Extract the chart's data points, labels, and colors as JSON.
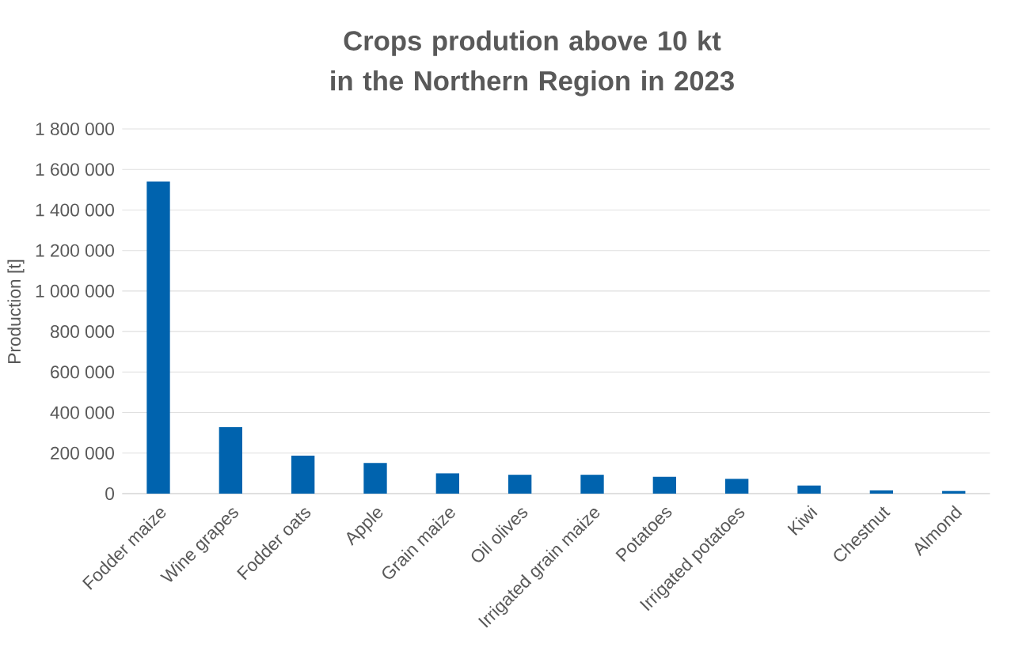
{
  "chart_data": {
    "type": "bar",
    "title": "Crops prodution above 10 kt in the Northern Region in 2023",
    "ylabel": "Production [t]",
    "categories": [
      "Fodder maize",
      "Wine grapes",
      "Fodder oats",
      "Apple",
      "Grain maize",
      "Oil olives",
      "Irrigated grain maize",
      "Potatoes",
      "Irrigated potatoes",
      "Kiwi",
      "Chestnut",
      "Almond"
    ],
    "values": [
      1540000,
      328000,
      187000,
      151000,
      100000,
      93000,
      93000,
      83000,
      73000,
      40000,
      16000,
      13000
    ],
    "color": "#0063ae",
    "ylim": [
      0,
      1800000
    ],
    "yticks": [
      0,
      {
        "value": 200000,
        "label": "200 000"
      },
      {
        "value": 400000,
        "label": "400 000"
      },
      {
        "value": 600000,
        "label": "600 000"
      },
      {
        "value": 800000,
        "label": "800 000"
      },
      {
        "value": 1000000,
        "label": "1 000 000"
      },
      {
        "value": 1200000,
        "label": "1 200 000"
      },
      {
        "value": 1400000,
        "label": "1 400 000"
      },
      {
        "value": 1600000,
        "label": "1 600 000"
      },
      {
        "value": 1800000,
        "label": "1 800 000"
      }
    ],
    "grid": "y"
  }
}
